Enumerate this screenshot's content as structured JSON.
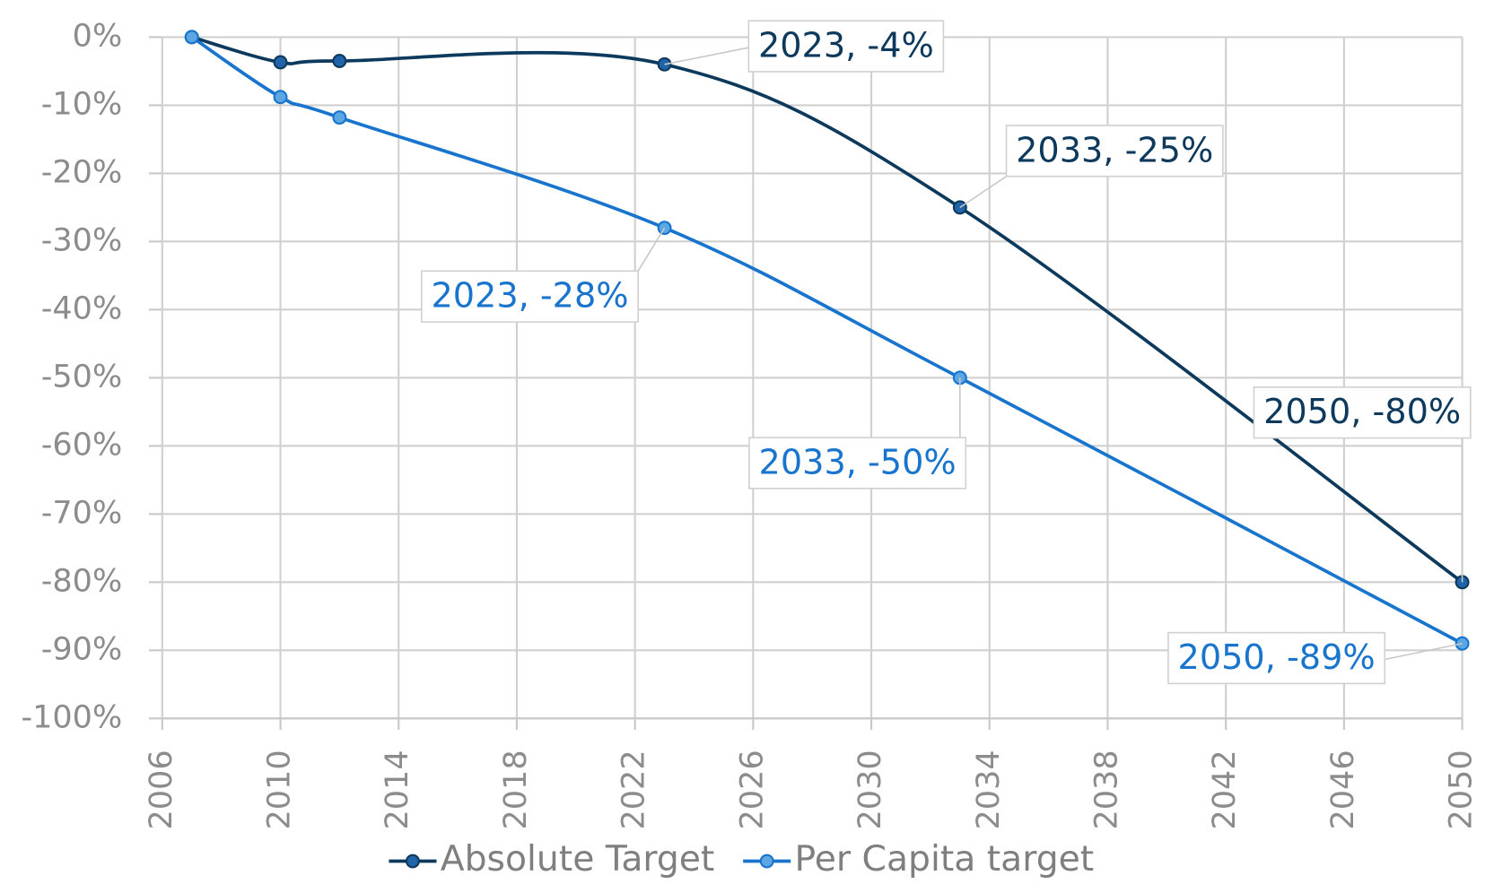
{
  "chart_data": {
    "type": "line",
    "x": [
      2007,
      2010,
      2012,
      2023,
      2033,
      2050
    ],
    "series": [
      {
        "name": "Absolute Target",
        "color": "#0d3a5c",
        "marker_color": "#1f64a8",
        "values": [
          0,
          -3.7,
          -3.5,
          -4,
          -25,
          -80
        ],
        "value_labels": [
          null,
          null,
          null,
          "2023, -4%",
          "2033, -25%",
          "2050, -80%"
        ]
      },
      {
        "name": "Per Capita target",
        "color": "#1874cd",
        "marker_color": "#5ba6e3",
        "values": [
          0,
          -8.8,
          -11.8,
          -28,
          -50,
          -89
        ],
        "value_labels": [
          null,
          null,
          null,
          "2023, -28%",
          "2033, -50%",
          "2050, -89%"
        ]
      }
    ],
    "xlim": [
      2006,
      2050
    ],
    "xticks": [
      2006,
      2010,
      2014,
      2018,
      2022,
      2026,
      2030,
      2034,
      2038,
      2042,
      2046,
      2050
    ],
    "ylim": [
      -100,
      0
    ],
    "yticks": [
      {
        "value": 0,
        "label": "0%"
      },
      {
        "value": -10,
        "label": "-10%"
      },
      {
        "value": -20,
        "label": "-20%"
      },
      {
        "value": -30,
        "label": "-30%"
      },
      {
        "value": -40,
        "label": "-40%"
      },
      {
        "value": -50,
        "label": "-50%"
      },
      {
        "value": -60,
        "label": "-60%"
      },
      {
        "value": -70,
        "label": "-70%"
      },
      {
        "value": -80,
        "label": "-80%"
      },
      {
        "value": -90,
        "label": "-90%"
      },
      {
        "value": -100,
        "label": "-100%"
      }
    ],
    "grid": true,
    "smooth": true,
    "legend": "bottom"
  }
}
